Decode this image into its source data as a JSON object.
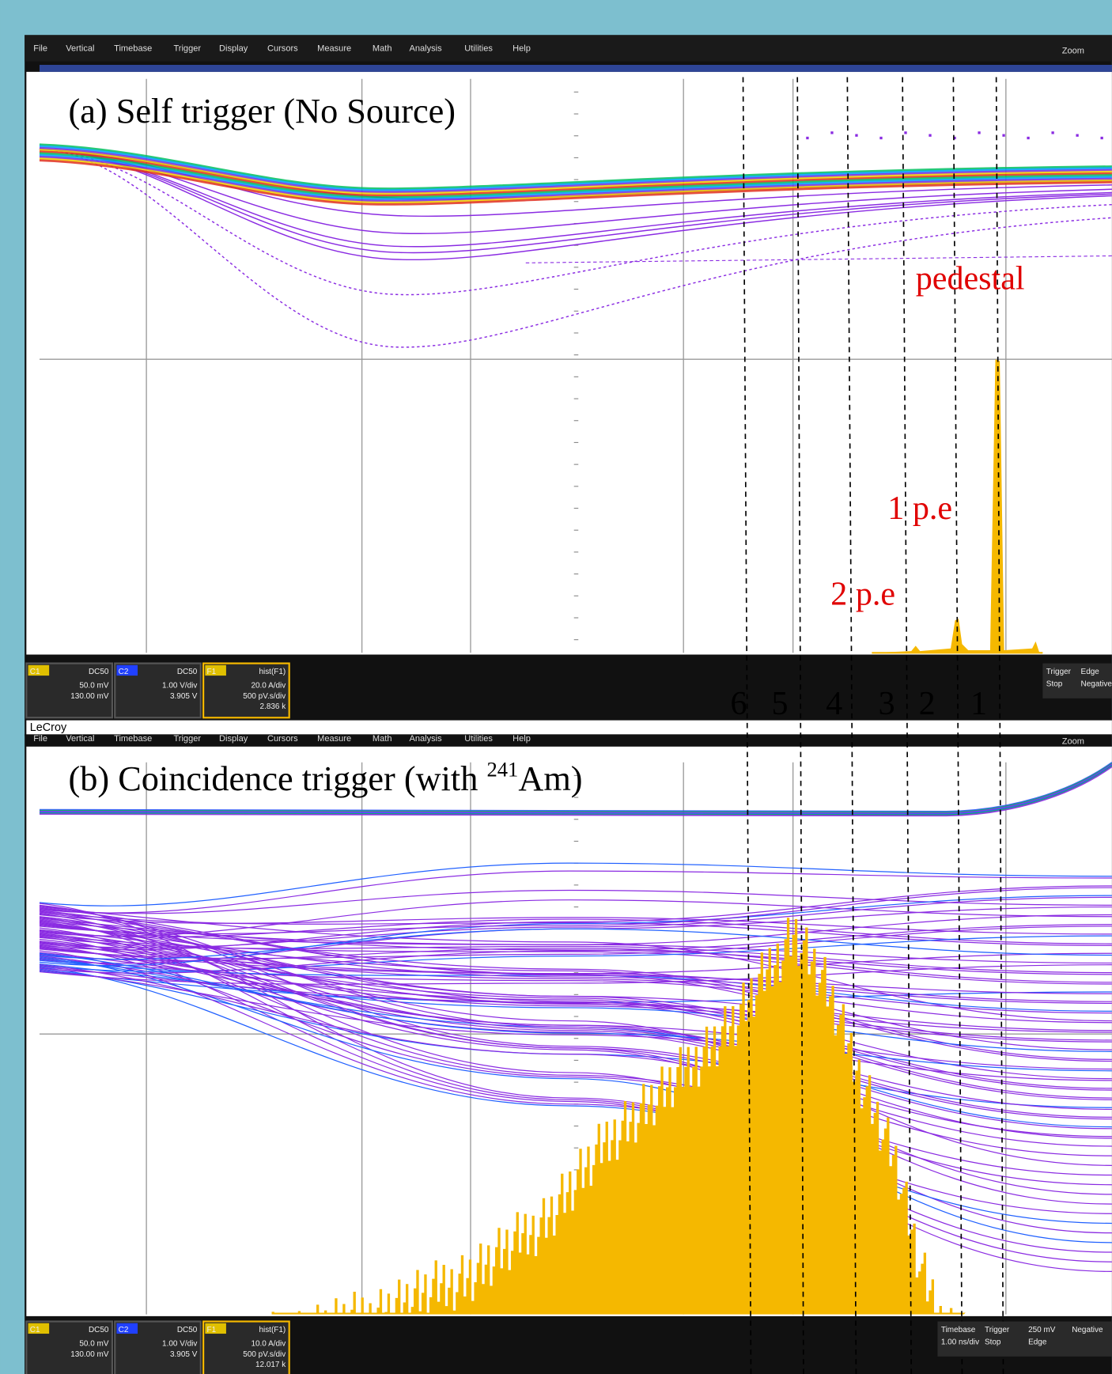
{
  "menu": [
    "File",
    "Vertical",
    "Timebase",
    "Trigger",
    "Display",
    "Cursors",
    "Measure",
    "Math",
    "Analysis",
    "Utilities",
    "Help"
  ],
  "zoom": "Zoom",
  "brand": "LeCroy",
  "peak_numbers": [
    "6",
    "5",
    "4",
    "3",
    "2",
    "1"
  ],
  "screens": [
    {
      "title": "(a) Self trigger (No Source)",
      "annotations": [
        "pedestal",
        "1 p.e",
        "2 p.e"
      ],
      "channels": [
        {
          "name": "C1",
          "coupling": "DC50",
          "lines": [
            "50.0 mV",
            "130.00 mV"
          ]
        },
        {
          "name": "C2",
          "coupling": "DC50",
          "lines": [
            "1.00 V/div",
            "3.905 V"
          ]
        },
        {
          "name": "F1",
          "coupling": "hist(F1)",
          "lines": [
            "20.0 A/div",
            "500 pV.s/div",
            "2.836 k"
          ]
        }
      ],
      "status": [
        "Trigger",
        "Stop",
        "Edge",
        "Negative"
      ]
    },
    {
      "title_parts": [
        "(b) Coincidence trigger  (with ",
        "241",
        "Am)"
      ],
      "channels": [
        {
          "name": "C1",
          "coupling": "DC50",
          "lines": [
            "50.0 mV",
            "130.00 mV"
          ]
        },
        {
          "name": "C2",
          "coupling": "DC50",
          "lines": [
            "1.00 V/div",
            "3.905 V"
          ]
        },
        {
          "name": "F1",
          "coupling": "hist(F1)",
          "lines": [
            "10.0 A/div",
            "500 pV.s/div",
            "12.017 k"
          ]
        }
      ],
      "status": [
        "Timebase",
        "1.00 ns/div",
        "Trigger",
        "Stop",
        "250 mV",
        "Edge",
        "Negative"
      ]
    }
  ]
}
